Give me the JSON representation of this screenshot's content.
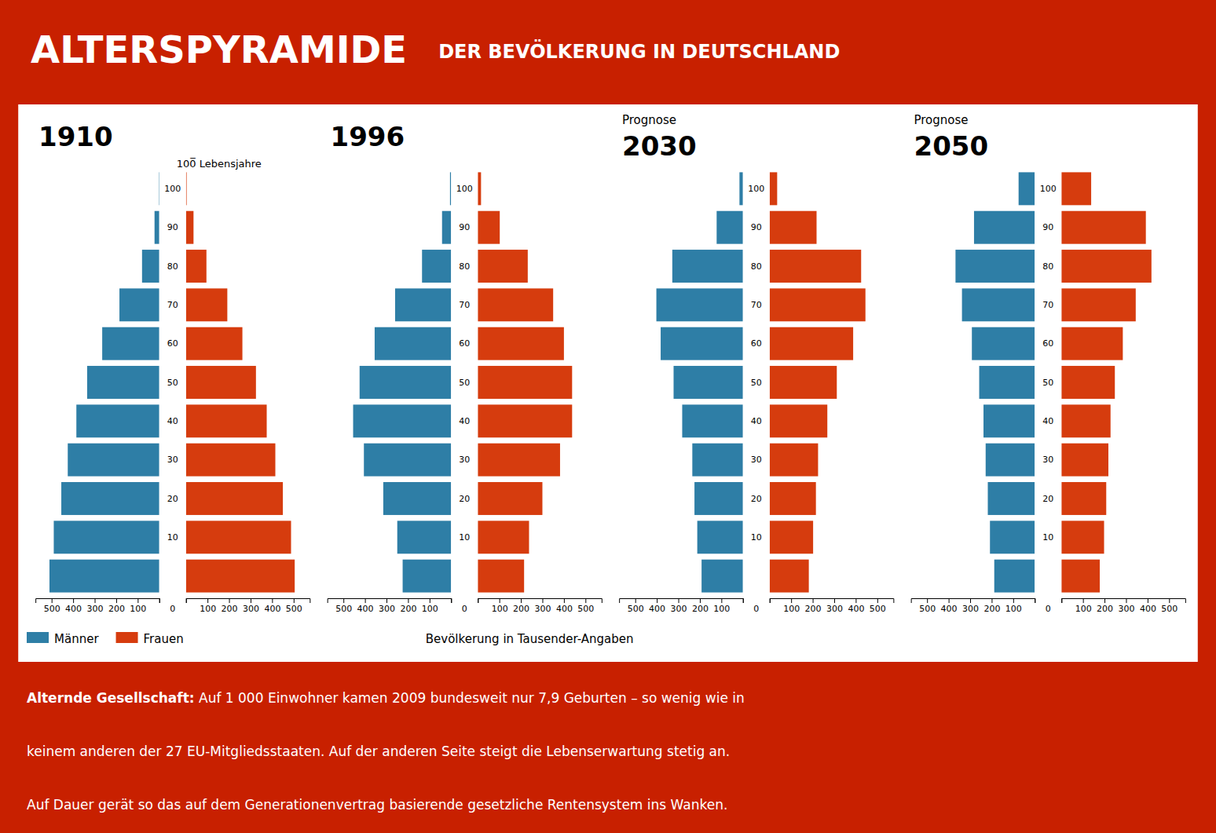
{
  "title": "ALTERSPYRAMIDE",
  "subtitle": "DER BEVÖLKERUNG IN DEUTSCHLAND",
  "annotations": [
    "Alternde Gesellschaft:",
    " Auf 1 000 Einwohner kamen 2009 bundesweit nur 7,9 Geburten – so wenig wie in",
    "keinem anderen der 27 EU-Mitgliedsstaaten. Auf der anderen Seite steigt die Lebenserwartung stetig an.",
    "Auf Dauer gerät so das auf dem Generationenvertrag basierende gesetzliche Rentensystem ins Wanken."
  ],
  "chart_data": [
    {
      "type": "bar",
      "orientation": "horizontal",
      "title": "1910",
      "categories": [
        null,
        10,
        20,
        30,
        40,
        50,
        60,
        70,
        80,
        90,
        100
      ],
      "series": [
        {
          "name": "Männer",
          "color": "#2e7ea6",
          "values": [
            510,
            490,
            455,
            425,
            385,
            335,
            265,
            185,
            80,
            22,
            2
          ]
        },
        {
          "name": "Frauen",
          "color": "#d63c0e",
          "values": [
            505,
            488,
            450,
            415,
            375,
            325,
            262,
            192,
            95,
            35,
            3
          ]
        }
      ],
      "xlim": [
        0,
        575
      ],
      "xticks": [
        0,
        100,
        200,
        300,
        400,
        500
      ],
      "xlabel": "Bevölkerung in Tausender-Angaben",
      "legend": "lower left",
      "grid": false,
      "annotations": [
        "100̅ Lebensjahre"
      ]
    },
    {
      "type": "bar",
      "orientation": "horizontal",
      "title": "1996",
      "categories": [
        null,
        10,
        20,
        30,
        40,
        50,
        60,
        70,
        80,
        90,
        100
      ],
      "series": [
        {
          "color": "#2e7ea6",
          "values": [
            225,
            250,
            315,
            405,
            455,
            425,
            355,
            260,
            135,
            42,
            5
          ]
        },
        {
          "color": "#d63c0e",
          "values": [
            215,
            238,
            300,
            382,
            438,
            438,
            400,
            350,
            232,
            102,
            15
          ]
        }
      ],
      "xlim": [
        0,
        575
      ],
      "xticks": [
        0,
        100,
        200,
        300,
        400,
        500
      ],
      "grid": false
    },
    {
      "type": "bar",
      "orientation": "horizontal",
      "title": "2030",
      "subtitle": "Prognose",
      "categories": [
        null,
        10,
        20,
        30,
        40,
        50,
        60,
        70,
        80,
        90,
        100
      ],
      "series": [
        {
          "color": "#2e7ea6",
          "values": [
            192,
            212,
            225,
            235,
            282,
            322,
            382,
            402,
            328,
            122,
            16
          ]
        },
        {
          "color": "#d63c0e",
          "values": [
            182,
            202,
            215,
            225,
            268,
            312,
            388,
            445,
            425,
            218,
            35
          ]
        }
      ],
      "xlim": [
        0,
        575
      ],
      "xticks": [
        0,
        100,
        200,
        300,
        400,
        500
      ],
      "grid": false
    },
    {
      "type": "bar",
      "orientation": "horizontal",
      "title": "2050",
      "subtitle": "Prognose",
      "categories": [
        null,
        10,
        20,
        30,
        40,
        50,
        60,
        70,
        80,
        90,
        100
      ],
      "series": [
        {
          "color": "#2e7ea6",
          "values": [
            188,
            208,
            218,
            228,
            238,
            258,
            292,
            338,
            368,
            282,
            75
          ]
        },
        {
          "color": "#d63c0e",
          "values": [
            178,
            198,
            208,
            218,
            228,
            248,
            285,
            345,
            418,
            392,
            138
          ]
        }
      ],
      "xlim": [
        0,
        575
      ],
      "xticks": [
        0,
        100,
        200,
        300,
        400,
        500
      ],
      "grid": false
    }
  ]
}
